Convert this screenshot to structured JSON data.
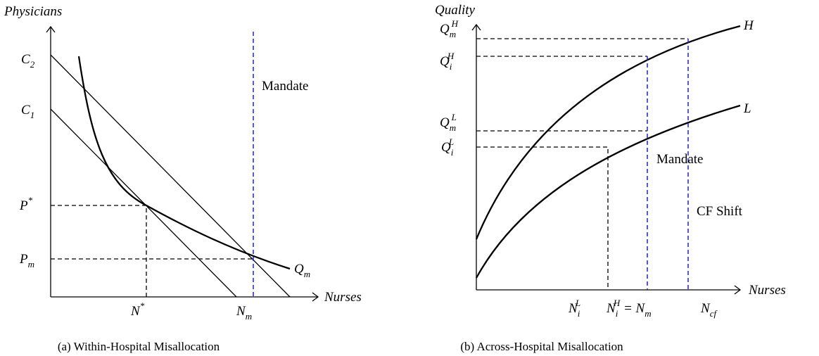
{
  "panels": [
    {
      "y_axis_label": "Physicians",
      "x_axis_label": "Nurses",
      "caption": "(a) Within-Hospital Misallocation",
      "labels": [
        {
          "italic": true,
          "parts": [
            {
              "text": "C"
            },
            {
              "text": "2",
              "pos": "sub"
            }
          ]
        },
        {
          "italic": true,
          "parts": [
            {
              "text": "C"
            },
            {
              "text": "1",
              "pos": "sub"
            }
          ]
        },
        {
          "italic": true,
          "parts": [
            {
              "text": "P"
            },
            {
              "text": "*",
              "pos": "sup"
            }
          ]
        },
        {
          "italic": true,
          "parts": [
            {
              "text": "P"
            },
            {
              "text": "m",
              "pos": "sub"
            }
          ]
        },
        {
          "italic": true,
          "parts": [
            {
              "text": "N"
            },
            {
              "text": "*",
              "pos": "sup"
            }
          ]
        },
        {
          "italic": true,
          "parts": [
            {
              "text": "N"
            },
            {
              "text": "m",
              "pos": "sub"
            }
          ]
        },
        {
          "italic": true,
          "parts": [
            {
              "text": "Q"
            },
            {
              "text": "m",
              "pos": "sub"
            }
          ]
        },
        {
          "italic": false,
          "parts": [
            {
              "text": "Mandate"
            }
          ]
        }
      ]
    },
    {
      "y_axis_label": "Quality",
      "x_axis_label": "Nurses",
      "caption": "(b) Across-Hospital Misallocation",
      "labels": [
        {
          "italic": true,
          "parts": [
            {
              "text": "Q"
            },
            {
              "text": "m",
              "pos": "sub"
            },
            {
              "text": "H",
              "pos": "sup"
            }
          ]
        },
        {
          "italic": true,
          "parts": [
            {
              "text": "Q"
            },
            {
              "text": "i",
              "pos": "sub"
            },
            {
              "text": "H",
              "pos": "sup"
            }
          ]
        },
        {
          "italic": true,
          "parts": [
            {
              "text": "Q"
            },
            {
              "text": "m",
              "pos": "sub"
            },
            {
              "text": "L",
              "pos": "sup"
            }
          ]
        },
        {
          "italic": true,
          "parts": [
            {
              "text": "Q"
            },
            {
              "text": "i",
              "pos": "sub"
            },
            {
              "text": "L",
              "pos": "sup"
            }
          ]
        },
        {
          "italic": true,
          "parts": [
            {
              "text": "N"
            },
            {
              "text": "i",
              "pos": "sub"
            },
            {
              "text": "L",
              "pos": "sup"
            }
          ]
        },
        {
          "italic": true,
          "parts": [
            {
              "text": "N"
            },
            {
              "text": "i",
              "pos": "sub"
            },
            {
              "text": "H",
              "pos": "sup"
            },
            {
              "text": " = N"
            },
            {
              "text": "m",
              "pos": "sub"
            }
          ]
        },
        {
          "italic": true,
          "parts": [
            {
              "text": "N"
            },
            {
              "text": "cf",
              "pos": "sub"
            }
          ]
        },
        {
          "italic": true,
          "parts": [
            {
              "text": "H"
            }
          ]
        },
        {
          "italic": true,
          "parts": [
            {
              "text": "L"
            }
          ]
        },
        {
          "italic": false,
          "parts": [
            {
              "text": "Mandate"
            }
          ]
        },
        {
          "italic": false,
          "parts": [
            {
              "text": "CF Shift"
            }
          ]
        }
      ]
    }
  ]
}
